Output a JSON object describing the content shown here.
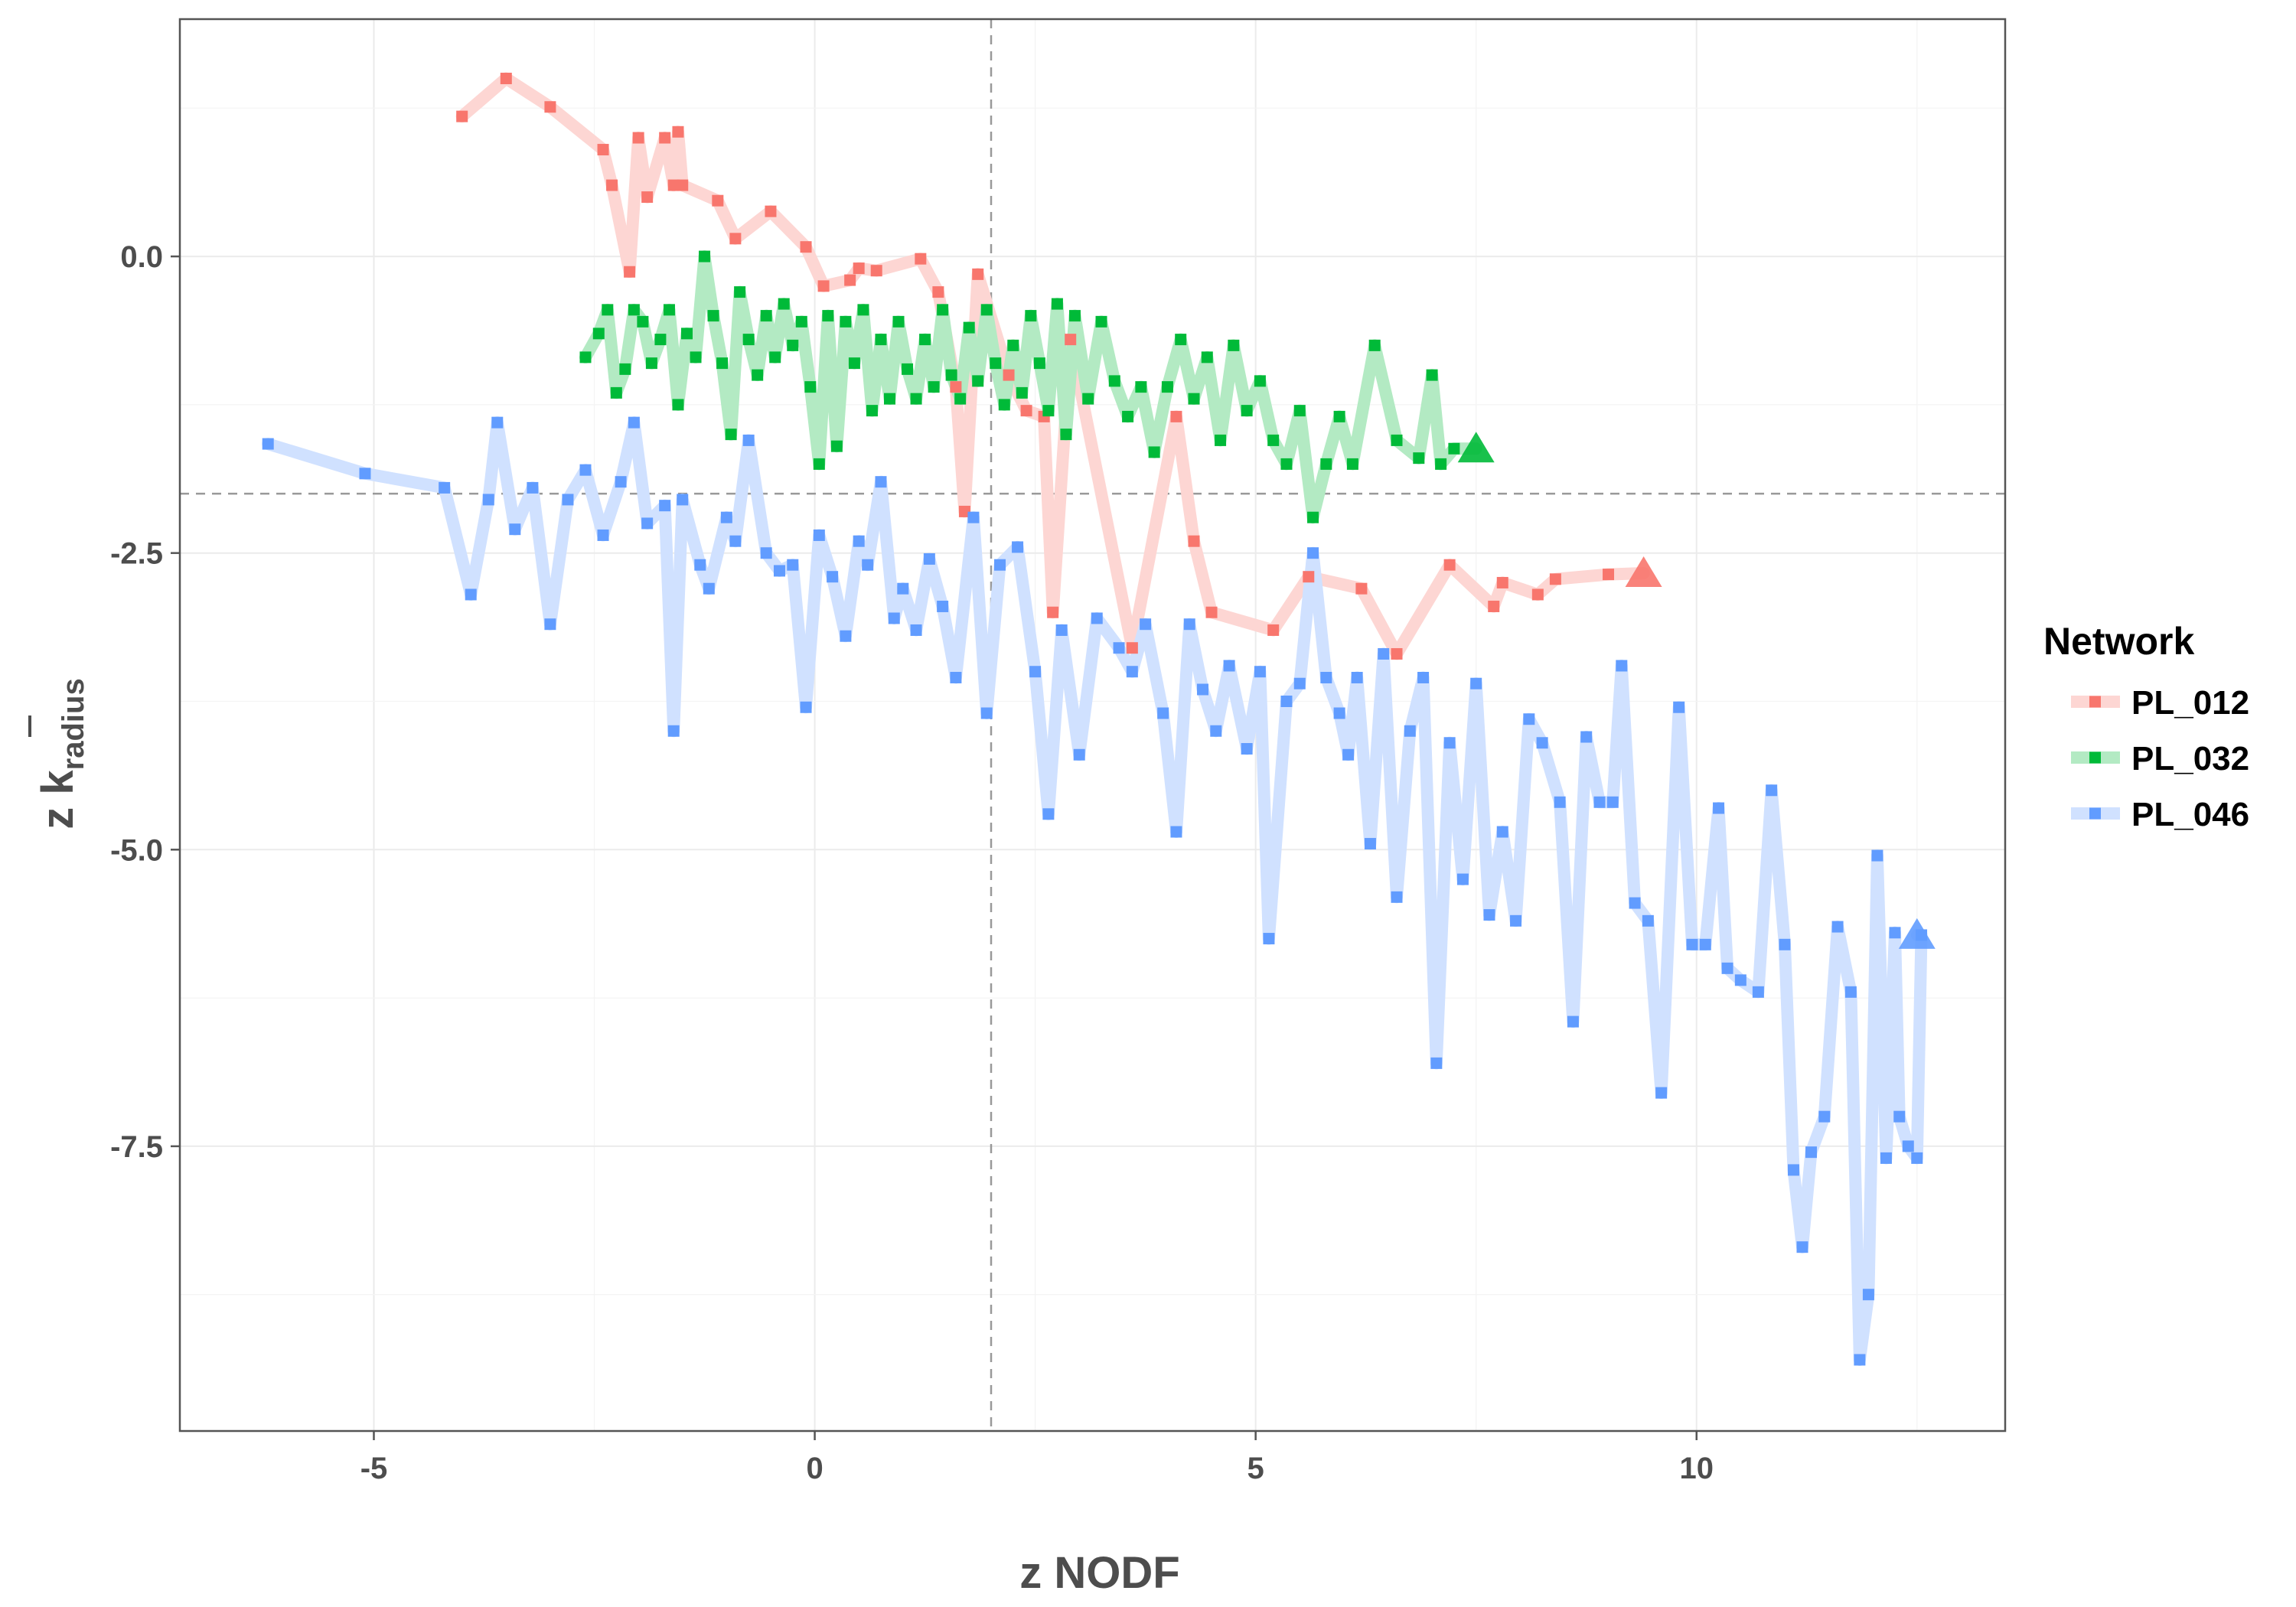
{
  "chart_data": {
    "type": "line",
    "xlabel": "z NODF",
    "ylabel": {
      "prefix": "z ",
      "main": "k",
      "subscript": "radius"
    },
    "xlim": [
      -7.2,
      13.5
    ],
    "ylim": [
      -9.9,
      2.0
    ],
    "x_ticks": [
      -5,
      0,
      5,
      10
    ],
    "x_tick_labels": [
      "-5",
      "0",
      "5",
      "10"
    ],
    "y_ticks": [
      -7.5,
      -5.0,
      -2.5,
      0.0
    ],
    "y_tick_labels": [
      "-7.5",
      "-5.0",
      "-2.5",
      "0.0"
    ],
    "grid": true,
    "reference_lines": {
      "x": 2,
      "y": -2
    },
    "legend": {
      "title": "Network",
      "position": "right"
    },
    "series": [
      {
        "name": "PL_012",
        "color": "#F8766D",
        "final_point": [
          9.4,
          -2.67
        ],
        "points": [
          [
            -4.0,
            1.18
          ],
          [
            -3.5,
            1.5
          ],
          [
            -3.0,
            1.26
          ],
          [
            -2.4,
            0.9
          ],
          [
            -2.3,
            0.6
          ],
          [
            -2.1,
            -0.13
          ],
          [
            -2.0,
            1.0
          ],
          [
            -1.9,
            0.5
          ],
          [
            -1.7,
            1.0
          ],
          [
            -1.6,
            0.6
          ],
          [
            -1.55,
            1.05
          ],
          [
            -1.5,
            0.6
          ],
          [
            -1.1,
            0.47
          ],
          [
            -0.9,
            0.15
          ],
          [
            -0.5,
            0.38
          ],
          [
            -0.1,
            0.08
          ],
          [
            0.1,
            -0.25
          ],
          [
            0.4,
            -0.2
          ],
          [
            0.5,
            -0.1
          ],
          [
            0.7,
            -0.12
          ],
          [
            1.2,
            -0.02
          ],
          [
            1.4,
            -0.3
          ],
          [
            1.6,
            -1.1
          ],
          [
            1.7,
            -2.15
          ],
          [
            1.85,
            -0.15
          ],
          [
            2.2,
            -1.0
          ],
          [
            2.4,
            -1.3
          ],
          [
            2.6,
            -1.35
          ],
          [
            2.7,
            -3.0
          ],
          [
            2.9,
            -0.7
          ],
          [
            3.6,
            -3.3
          ],
          [
            4.1,
            -1.35
          ],
          [
            4.3,
            -2.4
          ],
          [
            4.5,
            -3.0
          ],
          [
            5.2,
            -3.15
          ],
          [
            5.6,
            -2.7
          ],
          [
            6.2,
            -2.8
          ],
          [
            6.6,
            -3.35
          ],
          [
            7.2,
            -2.6
          ],
          [
            7.7,
            -2.95
          ],
          [
            7.8,
            -2.75
          ],
          [
            8.2,
            -2.85
          ],
          [
            8.4,
            -2.72
          ],
          [
            9.0,
            -2.68
          ]
        ]
      },
      {
        "name": "PL_032",
        "color": "#00BA38",
        "final_point": [
          7.5,
          -1.62
        ],
        "points": [
          [
            -2.6,
            -0.85
          ],
          [
            -2.45,
            -0.65
          ],
          [
            -2.35,
            -0.45
          ],
          [
            -2.25,
            -1.15
          ],
          [
            -2.15,
            -0.95
          ],
          [
            -2.05,
            -0.45
          ],
          [
            -1.95,
            -0.55
          ],
          [
            -1.85,
            -0.9
          ],
          [
            -1.75,
            -0.7
          ],
          [
            -1.65,
            -0.45
          ],
          [
            -1.55,
            -1.25
          ],
          [
            -1.45,
            -0.65
          ],
          [
            -1.35,
            -0.85
          ],
          [
            -1.25,
            0.0
          ],
          [
            -1.15,
            -0.5
          ],
          [
            -1.05,
            -0.9
          ],
          [
            -0.95,
            -1.5
          ],
          [
            -0.85,
            -0.3
          ],
          [
            -0.75,
            -0.7
          ],
          [
            -0.65,
            -1.0
          ],
          [
            -0.55,
            -0.5
          ],
          [
            -0.45,
            -0.85
          ],
          [
            -0.35,
            -0.4
          ],
          [
            -0.25,
            -0.75
          ],
          [
            -0.15,
            -0.55
          ],
          [
            -0.05,
            -1.1
          ],
          [
            0.05,
            -1.75
          ],
          [
            0.15,
            -0.5
          ],
          [
            0.25,
            -1.6
          ],
          [
            0.35,
            -0.55
          ],
          [
            0.45,
            -0.9
          ],
          [
            0.55,
            -0.45
          ],
          [
            0.65,
            -1.3
          ],
          [
            0.75,
            -0.7
          ],
          [
            0.85,
            -1.2
          ],
          [
            0.95,
            -0.55
          ],
          [
            1.05,
            -0.95
          ],
          [
            1.15,
            -1.2
          ],
          [
            1.25,
            -0.7
          ],
          [
            1.35,
            -1.1
          ],
          [
            1.45,
            -0.45
          ],
          [
            1.55,
            -1.0
          ],
          [
            1.65,
            -1.2
          ],
          [
            1.75,
            -0.6
          ],
          [
            1.85,
            -1.05
          ],
          [
            1.95,
            -0.45
          ],
          [
            2.05,
            -0.9
          ],
          [
            2.15,
            -1.25
          ],
          [
            2.25,
            -0.75
          ],
          [
            2.35,
            -1.15
          ],
          [
            2.45,
            -0.5
          ],
          [
            2.55,
            -0.9
          ],
          [
            2.65,
            -1.3
          ],
          [
            2.75,
            -0.4
          ],
          [
            2.85,
            -1.5
          ],
          [
            2.95,
            -0.5
          ],
          [
            3.1,
            -1.2
          ],
          [
            3.25,
            -0.55
          ],
          [
            3.4,
            -1.05
          ],
          [
            3.55,
            -1.35
          ],
          [
            3.7,
            -1.1
          ],
          [
            3.85,
            -1.65
          ],
          [
            4.0,
            -1.1
          ],
          [
            4.15,
            -0.7
          ],
          [
            4.3,
            -1.2
          ],
          [
            4.45,
            -0.85
          ],
          [
            4.6,
            -1.55
          ],
          [
            4.75,
            -0.75
          ],
          [
            4.9,
            -1.3
          ],
          [
            5.05,
            -1.05
          ],
          [
            5.2,
            -1.55
          ],
          [
            5.35,
            -1.75
          ],
          [
            5.5,
            -1.3
          ],
          [
            5.65,
            -2.2
          ],
          [
            5.8,
            -1.75
          ],
          [
            5.95,
            -1.35
          ],
          [
            6.1,
            -1.75
          ],
          [
            6.35,
            -0.75
          ],
          [
            6.6,
            -1.55
          ],
          [
            6.85,
            -1.7
          ],
          [
            7.0,
            -1.0
          ],
          [
            7.1,
            -1.75
          ],
          [
            7.25,
            -1.62
          ]
        ]
      },
      {
        "name": "PL_046",
        "color": "#619CFF",
        "final_point": [
          12.5,
          -5.72
        ],
        "points": [
          [
            -6.2,
            -1.58
          ],
          [
            -5.1,
            -1.83
          ],
          [
            -4.2,
            -1.95
          ],
          [
            -3.9,
            -2.85
          ],
          [
            -3.7,
            -2.05
          ],
          [
            -3.6,
            -1.4
          ],
          [
            -3.4,
            -2.3
          ],
          [
            -3.2,
            -1.95
          ],
          [
            -3.0,
            -3.1
          ],
          [
            -2.8,
            -2.05
          ],
          [
            -2.6,
            -1.8
          ],
          [
            -2.4,
            -2.35
          ],
          [
            -2.2,
            -1.9
          ],
          [
            -2.05,
            -1.4
          ],
          [
            -1.9,
            -2.25
          ],
          [
            -1.7,
            -2.1
          ],
          [
            -1.6,
            -4.0
          ],
          [
            -1.5,
            -2.05
          ],
          [
            -1.3,
            -2.6
          ],
          [
            -1.2,
            -2.8
          ],
          [
            -1.0,
            -2.2
          ],
          [
            -0.9,
            -2.4
          ],
          [
            -0.75,
            -1.55
          ],
          [
            -0.55,
            -2.5
          ],
          [
            -0.4,
            -2.65
          ],
          [
            -0.25,
            -2.6
          ],
          [
            -0.1,
            -3.8
          ],
          [
            0.05,
            -2.35
          ],
          [
            0.2,
            -2.7
          ],
          [
            0.35,
            -3.2
          ],
          [
            0.5,
            -2.4
          ],
          [
            0.6,
            -2.6
          ],
          [
            0.75,
            -1.9
          ],
          [
            0.9,
            -3.05
          ],
          [
            1.0,
            -2.8
          ],
          [
            1.15,
            -3.15
          ],
          [
            1.3,
            -2.55
          ],
          [
            1.45,
            -2.95
          ],
          [
            1.6,
            -3.55
          ],
          [
            1.8,
            -2.2
          ],
          [
            1.95,
            -3.85
          ],
          [
            2.1,
            -2.6
          ],
          [
            2.3,
            -2.45
          ],
          [
            2.5,
            -3.5
          ],
          [
            2.65,
            -4.7
          ],
          [
            2.8,
            -3.15
          ],
          [
            3.0,
            -4.2
          ],
          [
            3.2,
            -3.05
          ],
          [
            3.45,
            -3.3
          ],
          [
            3.6,
            -3.5
          ],
          [
            3.75,
            -3.1
          ],
          [
            3.95,
            -3.85
          ],
          [
            4.1,
            -4.85
          ],
          [
            4.25,
            -3.1
          ],
          [
            4.4,
            -3.65
          ],
          [
            4.55,
            -4.0
          ],
          [
            4.7,
            -3.45
          ],
          [
            4.9,
            -4.15
          ],
          [
            5.05,
            -3.5
          ],
          [
            5.15,
            -5.75
          ],
          [
            5.35,
            -3.75
          ],
          [
            5.5,
            -3.6
          ],
          [
            5.65,
            -2.5
          ],
          [
            5.8,
            -3.55
          ],
          [
            5.95,
            -3.85
          ],
          [
            6.05,
            -4.2
          ],
          [
            6.15,
            -3.55
          ],
          [
            6.3,
            -4.95
          ],
          [
            6.45,
            -3.35
          ],
          [
            6.6,
            -5.4
          ],
          [
            6.75,
            -4.0
          ],
          [
            6.9,
            -3.55
          ],
          [
            7.05,
            -6.8
          ],
          [
            7.2,
            -4.1
          ],
          [
            7.35,
            -5.25
          ],
          [
            7.5,
            -3.6
          ],
          [
            7.65,
            -5.55
          ],
          [
            7.8,
            -4.85
          ],
          [
            7.95,
            -5.6
          ],
          [
            8.1,
            -3.9
          ],
          [
            8.25,
            -4.1
          ],
          [
            8.45,
            -4.6
          ],
          [
            8.6,
            -6.45
          ],
          [
            8.75,
            -4.05
          ],
          [
            8.9,
            -4.6
          ],
          [
            9.05,
            -4.6
          ],
          [
            9.15,
            -3.45
          ],
          [
            9.3,
            -5.45
          ],
          [
            9.45,
            -5.6
          ],
          [
            9.6,
            -7.05
          ],
          [
            9.8,
            -3.8
          ],
          [
            9.95,
            -5.8
          ],
          [
            10.1,
            -5.8
          ],
          [
            10.25,
            -4.65
          ],
          [
            10.35,
            -6.0
          ],
          [
            10.5,
            -6.1
          ],
          [
            10.7,
            -6.2
          ],
          [
            10.85,
            -4.5
          ],
          [
            11.0,
            -5.8
          ],
          [
            11.1,
            -7.7
          ],
          [
            11.2,
            -8.35
          ],
          [
            11.3,
            -7.55
          ],
          [
            11.45,
            -7.25
          ],
          [
            11.6,
            -5.65
          ],
          [
            11.75,
            -6.2
          ],
          [
            11.85,
            -9.3
          ],
          [
            11.95,
            -8.75
          ],
          [
            12.05,
            -5.05
          ],
          [
            12.15,
            -7.6
          ],
          [
            12.25,
            -5.7
          ],
          [
            12.3,
            -7.25
          ],
          [
            12.4,
            -7.5
          ],
          [
            12.5,
            -7.6
          ],
          [
            12.55,
            -5.72
          ]
        ]
      }
    ]
  }
}
